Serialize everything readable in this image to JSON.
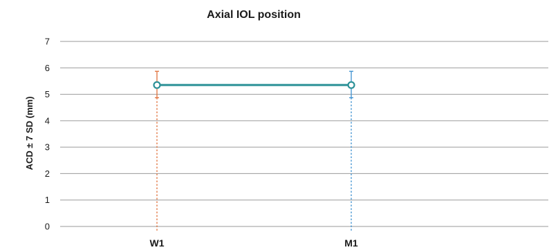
{
  "chart_data": {
    "type": "line",
    "title": "Axial IOL position",
    "xlabel": "",
    "ylabel": "ACD ± 7 SD (mm)",
    "ylim": [
      0,
      7
    ],
    "yticks": [
      "0",
      "1",
      "2",
      "3",
      "4",
      "5",
      "6",
      "7"
    ],
    "grid": true,
    "categories": [
      "W1",
      "M1"
    ],
    "series": [
      {
        "values": [
          5.35,
          5.35
        ],
        "error_low": [
          4.87,
          4.87
        ],
        "error_high": [
          5.87,
          5.87
        ],
        "line_color": "#2a9096",
        "error_colors": [
          "#e0703a",
          "#3a8fd0"
        ]
      }
    ]
  }
}
